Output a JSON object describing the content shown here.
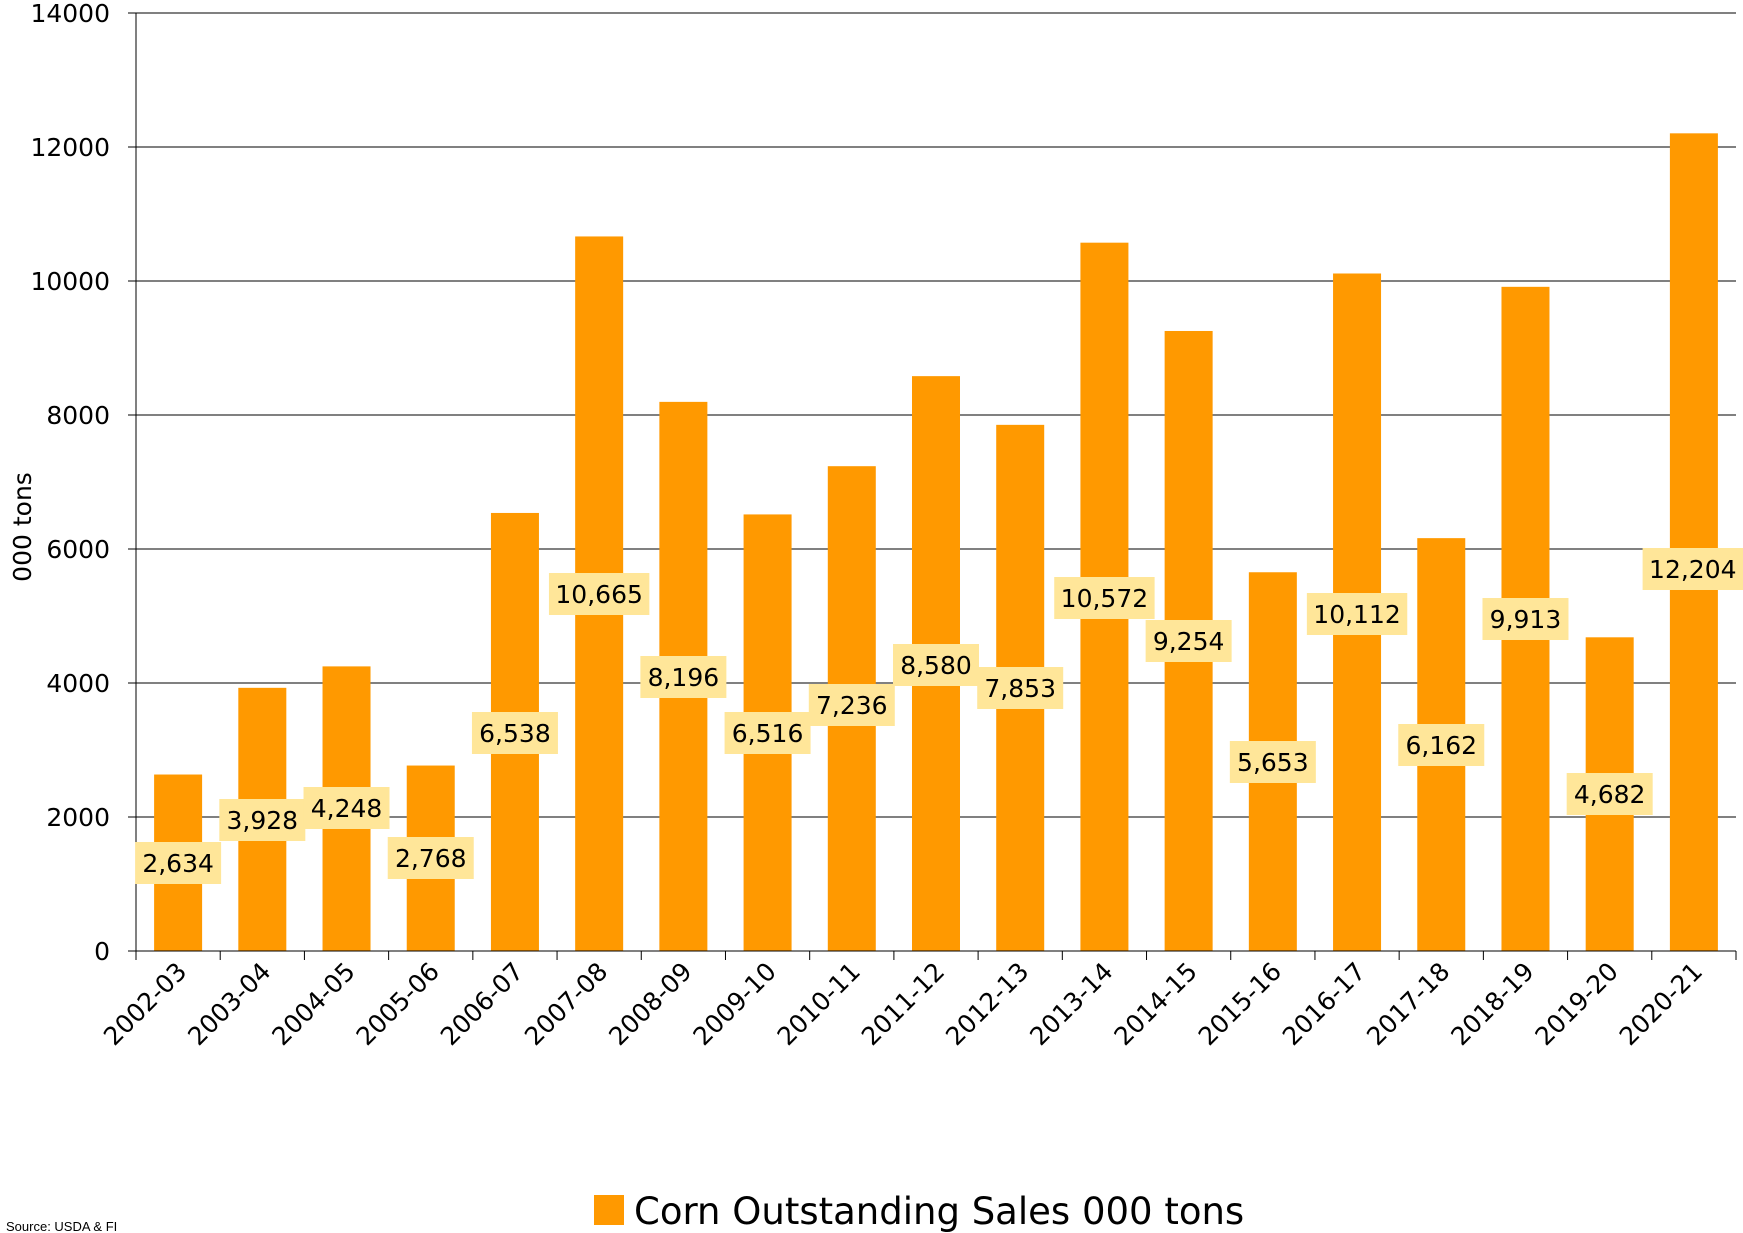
{
  "chart_data": {
    "type": "bar",
    "categories": [
      "2002-03",
      "2003-04",
      "2004-05",
      "2005-06",
      "2006-07",
      "2007-08",
      "2008-09",
      "2009-10",
      "2010-11",
      "2011-12",
      "2012-13",
      "2013-14",
      "2014-15",
      "2015-16",
      "2016-17",
      "2017-18",
      "2018-19",
      "2019-20",
      "2020-21"
    ],
    "series": [
      {
        "name": "Corn Outstanding Sales 000 tons",
        "values": [
          2634,
          3928,
          4248,
          2768,
          6538,
          10665,
          8196,
          6516,
          7236,
          8580,
          7853,
          10572,
          9254,
          5653,
          10112,
          6162,
          9913,
          4682,
          12204
        ],
        "labels": [
          "2,634",
          "3,928",
          "4,248",
          "2,768",
          "6,538",
          "10,665",
          "8,196",
          "6,516",
          "7,236",
          "8,580",
          "7,853",
          "10,572",
          "9,254",
          "5,653",
          "10,112",
          "6,162",
          "9,913",
          "4,682",
          "12,204"
        ],
        "color": "#FF9900"
      }
    ],
    "ylabel": "000 tons",
    "xlabel": "",
    "ylim": [
      0,
      14000
    ],
    "yticks": [
      0,
      2000,
      4000,
      6000,
      8000,
      10000,
      12000,
      14000
    ],
    "grid": true,
    "legend_position": "bottom",
    "label_bg_color": "#FFE699",
    "source": "Source: USDA & FI"
  }
}
